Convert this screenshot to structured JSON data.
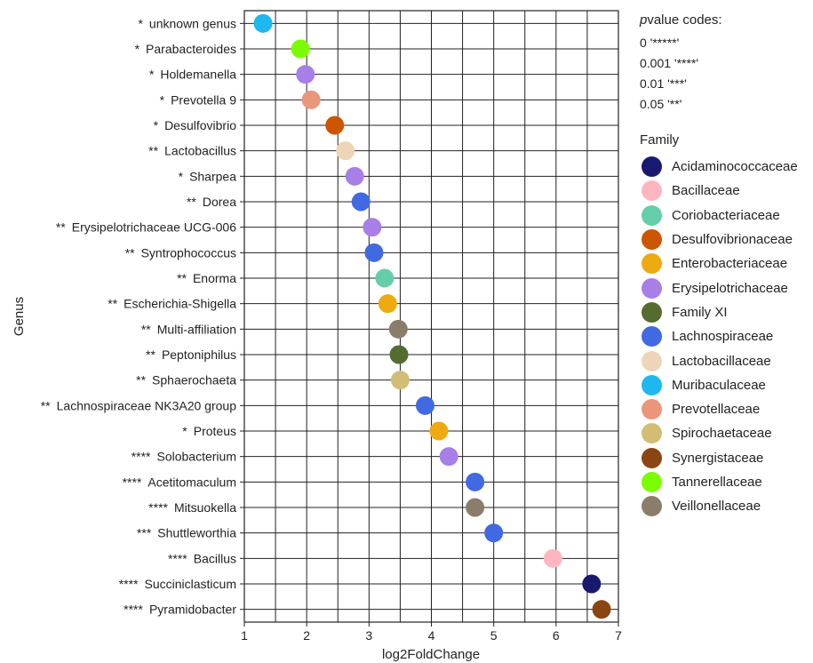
{
  "chart_data": {
    "type": "scatter",
    "xlabel": "log2FoldChange",
    "ylabel": "Genus",
    "xlim": [
      1,
      7
    ],
    "xticks": [
      1,
      2,
      3,
      4,
      5,
      6,
      7
    ],
    "grid": true,
    "legend_position": "right",
    "points": [
      {
        "genus": "unknown genus",
        "sig": "*",
        "x": 1.3,
        "family": "Muribaculaceae"
      },
      {
        "genus": "Parabacteroides",
        "sig": "*",
        "x": 1.9,
        "family": "Tannerellaceae"
      },
      {
        "genus": "Holdemanella",
        "sig": "*",
        "x": 1.98,
        "family": "Erysipelotrichaceae"
      },
      {
        "genus": "Prevotella 9",
        "sig": "*",
        "x": 2.07,
        "family": "Prevotellaceae"
      },
      {
        "genus": "Desulfovibrio",
        "sig": "*",
        "x": 2.45,
        "family": "Desulfovibrionaceae"
      },
      {
        "genus": "Lactobacillus",
        "sig": "**",
        "x": 2.62,
        "family": "Lactobacillaceae"
      },
      {
        "genus": "Sharpea",
        "sig": "*",
        "x": 2.77,
        "family": "Erysipelotrichaceae"
      },
      {
        "genus": "Dorea",
        "sig": "**",
        "x": 2.87,
        "family": "Lachnospiraceae"
      },
      {
        "genus": "Erysipelotrichaceae UCG-006",
        "sig": "**",
        "x": 3.05,
        "family": "Erysipelotrichaceae"
      },
      {
        "genus": "Syntrophococcus",
        "sig": "**",
        "x": 3.08,
        "family": "Lachnospiraceae"
      },
      {
        "genus": "Enorma",
        "sig": "**",
        "x": 3.25,
        "family": "Coriobacteriaceae"
      },
      {
        "genus": "Escherichia-Shigella",
        "sig": "**",
        "x": 3.3,
        "family": "Enterobacteriaceae"
      },
      {
        "genus": "Multi-affiliation",
        "sig": "**",
        "x": 3.47,
        "family": "Veillonellaceae"
      },
      {
        "genus": "Peptoniphilus",
        "sig": "**",
        "x": 3.48,
        "family": "Family XI"
      },
      {
        "genus": "Sphaerochaeta",
        "sig": "**",
        "x": 3.5,
        "family": "Spirochaetaceae"
      },
      {
        "genus": "Lachnospiraceae NK3A20 group",
        "sig": "**",
        "x": 3.9,
        "family": "Lachnospiraceae"
      },
      {
        "genus": "Proteus",
        "sig": "*",
        "x": 4.12,
        "family": "Enterobacteriaceae"
      },
      {
        "genus": "Solobacterium",
        "sig": "****",
        "x": 4.28,
        "family": "Erysipelotrichaceae"
      },
      {
        "genus": "Acetitomaculum",
        "sig": "****",
        "x": 4.7,
        "family": "Lachnospiraceae"
      },
      {
        "genus": "Mitsuokella",
        "sig": "****",
        "x": 4.7,
        "family": "Veillonellaceae"
      },
      {
        "genus": "Shuttleworthia",
        "sig": "***",
        "x": 5.0,
        "family": "Lachnospiraceae"
      },
      {
        "genus": "Bacillus",
        "sig": "****",
        "x": 5.95,
        "family": "Bacillaceae"
      },
      {
        "genus": "Succiniclasticum",
        "sig": "****",
        "x": 6.57,
        "family": "Acidaminococcaceae"
      },
      {
        "genus": "Pyramidobacter",
        "sig": "****",
        "x": 6.73,
        "family": "Synergistaceae"
      }
    ],
    "pvalue_legend": {
      "title_italic": "p",
      "title_rest": "value codes:",
      "codes": [
        {
          "value": "0",
          "stars": "'*****'"
        },
        {
          "value": "0.001",
          "stars": "'****'"
        },
        {
          "value": "0.01",
          "stars": "'***'"
        },
        {
          "value": "0.05",
          "stars": "'**'"
        }
      ]
    },
    "family_legend": {
      "title": "Family",
      "items": [
        {
          "name": "Acidaminococcaceae",
          "color": "#191970"
        },
        {
          "name": "Bacillaceae",
          "color": "#FFB6C1"
        },
        {
          "name": "Coriobacteriaceae",
          "color": "#66CDAA"
        },
        {
          "name": "Desulfovibrionaceae",
          "color": "#CC5500"
        },
        {
          "name": "Enterobacteriaceae",
          "color": "#EEAA11"
        },
        {
          "name": "Erysipelotrichaceae",
          "color": "#A77FE6"
        },
        {
          "name": "Family XI",
          "color": "#556B2F"
        },
        {
          "name": "Lachnospiraceae",
          "color": "#4169E1"
        },
        {
          "name": "Lactobacillaceae",
          "color": "#EED5B7"
        },
        {
          "name": "Muribaculaceae",
          "color": "#1EB8EE"
        },
        {
          "name": "Prevotellaceae",
          "color": "#E9967A"
        },
        {
          "name": "Spirochaetaceae",
          "color": "#D2BD76"
        },
        {
          "name": "Synergistaceae",
          "color": "#8B4513"
        },
        {
          "name": "Tannerellaceae",
          "color": "#7CFC00"
        },
        {
          "name": "Veillonellaceae",
          "color": "#8B7D6B"
        }
      ]
    }
  }
}
